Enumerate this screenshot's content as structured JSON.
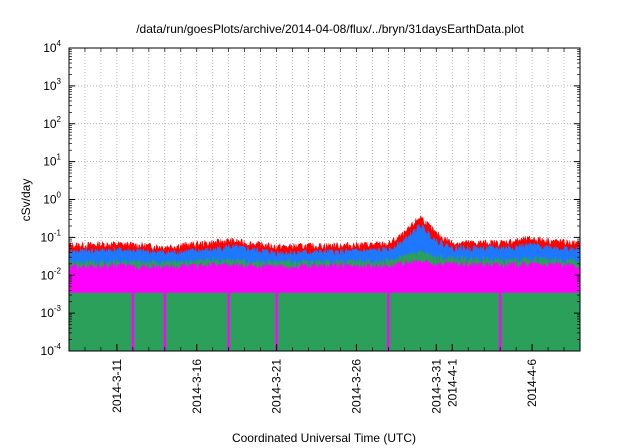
{
  "chart_data": {
    "type": "area",
    "title": "/data/run/goesPlots/archive/2014-04-08/flux/../bryn/31daysEarthData.plot",
    "xlabel": "Coordinated Universal Time (UTC)",
    "ylabel": "cSv/day",
    "yscale": "log",
    "ylim": [
      0.0001,
      10000
    ],
    "xlim": [
      "2014-03-08",
      "2014-04-09"
    ],
    "grid": true,
    "legend": "none",
    "x_ticks": [
      "2014-3-11",
      "2014-3-16",
      "2014-3-21",
      "2014-3-26",
      "2014-3-31",
      "2014-4-1",
      "2014-4-6"
    ],
    "x_tick_dates": [
      "2014-03-11",
      "2014-03-16",
      "2014-03-21",
      "2014-03-26",
      "2014-03-31",
      "2014-04-01",
      "2014-04-06"
    ],
    "y_ticks": [
      {
        "base": "10",
        "exp": "-4",
        "value": 0.0001
      },
      {
        "base": "10",
        "exp": "-3",
        "value": 0.001
      },
      {
        "base": "10",
        "exp": "-2",
        "value": 0.01
      },
      {
        "base": "10",
        "exp": "-1",
        "value": 0.1
      },
      {
        "base": "10",
        "exp": "0",
        "value": 1
      },
      {
        "base": "10",
        "exp": "1",
        "value": 10
      },
      {
        "base": "10",
        "exp": "2",
        "value": 100
      },
      {
        "base": "10",
        "exp": "3",
        "value": 1000
      },
      {
        "base": "10",
        "exp": "4",
        "value": 10000
      }
    ],
    "series": [
      {
        "color": "#ff0000",
        "points": [
          [
            "2014-03-08",
            0.06
          ],
          [
            "2014-03-11",
            0.065
          ],
          [
            "2014-03-14",
            0.055
          ],
          [
            "2014-03-17",
            0.07
          ],
          [
            "2014-03-18",
            0.08
          ],
          [
            "2014-03-21",
            0.055
          ],
          [
            "2014-03-25",
            0.06
          ],
          [
            "2014-03-28",
            0.065
          ],
          [
            "2014-03-29",
            0.12
          ],
          [
            "2014-03-30",
            0.35
          ],
          [
            "2014-03-31",
            0.12
          ],
          [
            "2014-04-01",
            0.07
          ],
          [
            "2014-04-04",
            0.07
          ],
          [
            "2014-04-06",
            0.09
          ],
          [
            "2014-04-09",
            0.065
          ]
        ]
      },
      {
        "color": "#1e78ff",
        "points": [
          [
            "2014-03-08",
            0.04
          ],
          [
            "2014-03-11",
            0.045
          ],
          [
            "2014-03-14",
            0.038
          ],
          [
            "2014-03-17",
            0.045
          ],
          [
            "2014-03-18",
            0.055
          ],
          [
            "2014-03-21",
            0.038
          ],
          [
            "2014-03-25",
            0.04
          ],
          [
            "2014-03-28",
            0.045
          ],
          [
            "2014-03-29",
            0.08
          ],
          [
            "2014-03-30",
            0.2
          ],
          [
            "2014-03-31",
            0.08
          ],
          [
            "2014-04-01",
            0.05
          ],
          [
            "2014-04-04",
            0.05
          ],
          [
            "2014-04-06",
            0.06
          ],
          [
            "2014-04-09",
            0.045
          ]
        ]
      },
      {
        "color": "#2aa05a",
        "points": [
          [
            "2014-03-08",
            0.02
          ],
          [
            "2014-03-11",
            0.022
          ],
          [
            "2014-03-14",
            0.02
          ],
          [
            "2014-03-17",
            0.024
          ],
          [
            "2014-03-21",
            0.021
          ],
          [
            "2014-03-25",
            0.022
          ],
          [
            "2014-03-28",
            0.023
          ],
          [
            "2014-03-30",
            0.04
          ],
          [
            "2014-03-31",
            0.028
          ],
          [
            "2014-04-04",
            0.024
          ],
          [
            "2014-04-06",
            0.026
          ],
          [
            "2014-04-09",
            0.023
          ]
        ]
      },
      {
        "color": "#ff00ff",
        "points": [
          [
            "2014-03-08",
            0.016
          ],
          [
            "2014-03-11",
            0.017
          ],
          [
            "2014-03-14",
            0.016
          ],
          [
            "2014-03-17",
            0.018
          ],
          [
            "2014-03-21",
            0.016
          ],
          [
            "2014-03-25",
            0.017
          ],
          [
            "2014-03-28",
            0.017
          ],
          [
            "2014-03-30",
            0.022
          ],
          [
            "2014-03-31",
            0.019
          ],
          [
            "2014-04-04",
            0.018
          ],
          [
            "2014-04-06",
            0.019
          ],
          [
            "2014-04-09",
            0.017
          ]
        ],
        "floor": 0.0035,
        "dropouts": [
          "2014-03-12",
          "2014-03-14",
          "2014-03-18",
          "2014-03-21",
          "2014-03-28",
          "2014-04-04"
        ],
        "dropout_min": 0.0001
      }
    ]
  }
}
